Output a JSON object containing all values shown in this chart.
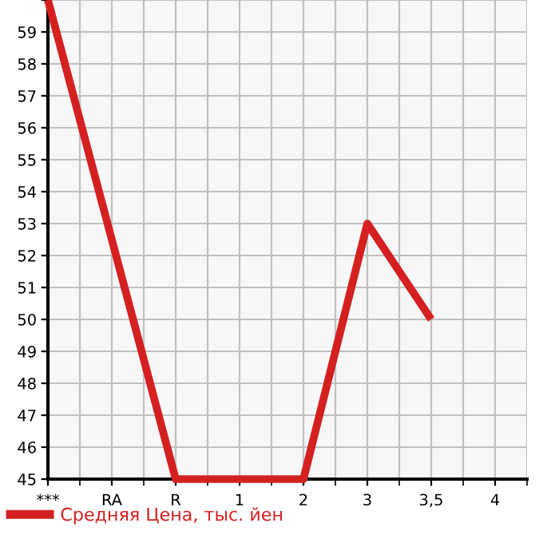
{
  "chart_data": {
    "type": "line",
    "categories": [
      "***",
      "RA",
      "R",
      "1",
      "2",
      "3",
      "3,5",
      "4"
    ],
    "series": [
      {
        "name": "Средняя Цена, тыс. йен",
        "color": "#d42020",
        "values": [
          60,
          null,
          45,
          45,
          45,
          53,
          50,
          null
        ]
      }
    ],
    "ylim": [
      45,
      60
    ],
    "yticks": [
      45,
      46,
      47,
      48,
      49,
      50,
      51,
      52,
      53,
      54,
      55,
      56,
      57,
      58,
      59,
      {
        "value": 60,
        "label": null
      }
    ],
    "grid": true,
    "legend": "bottom",
    "marker": "none",
    "line_style": "solid"
  }
}
